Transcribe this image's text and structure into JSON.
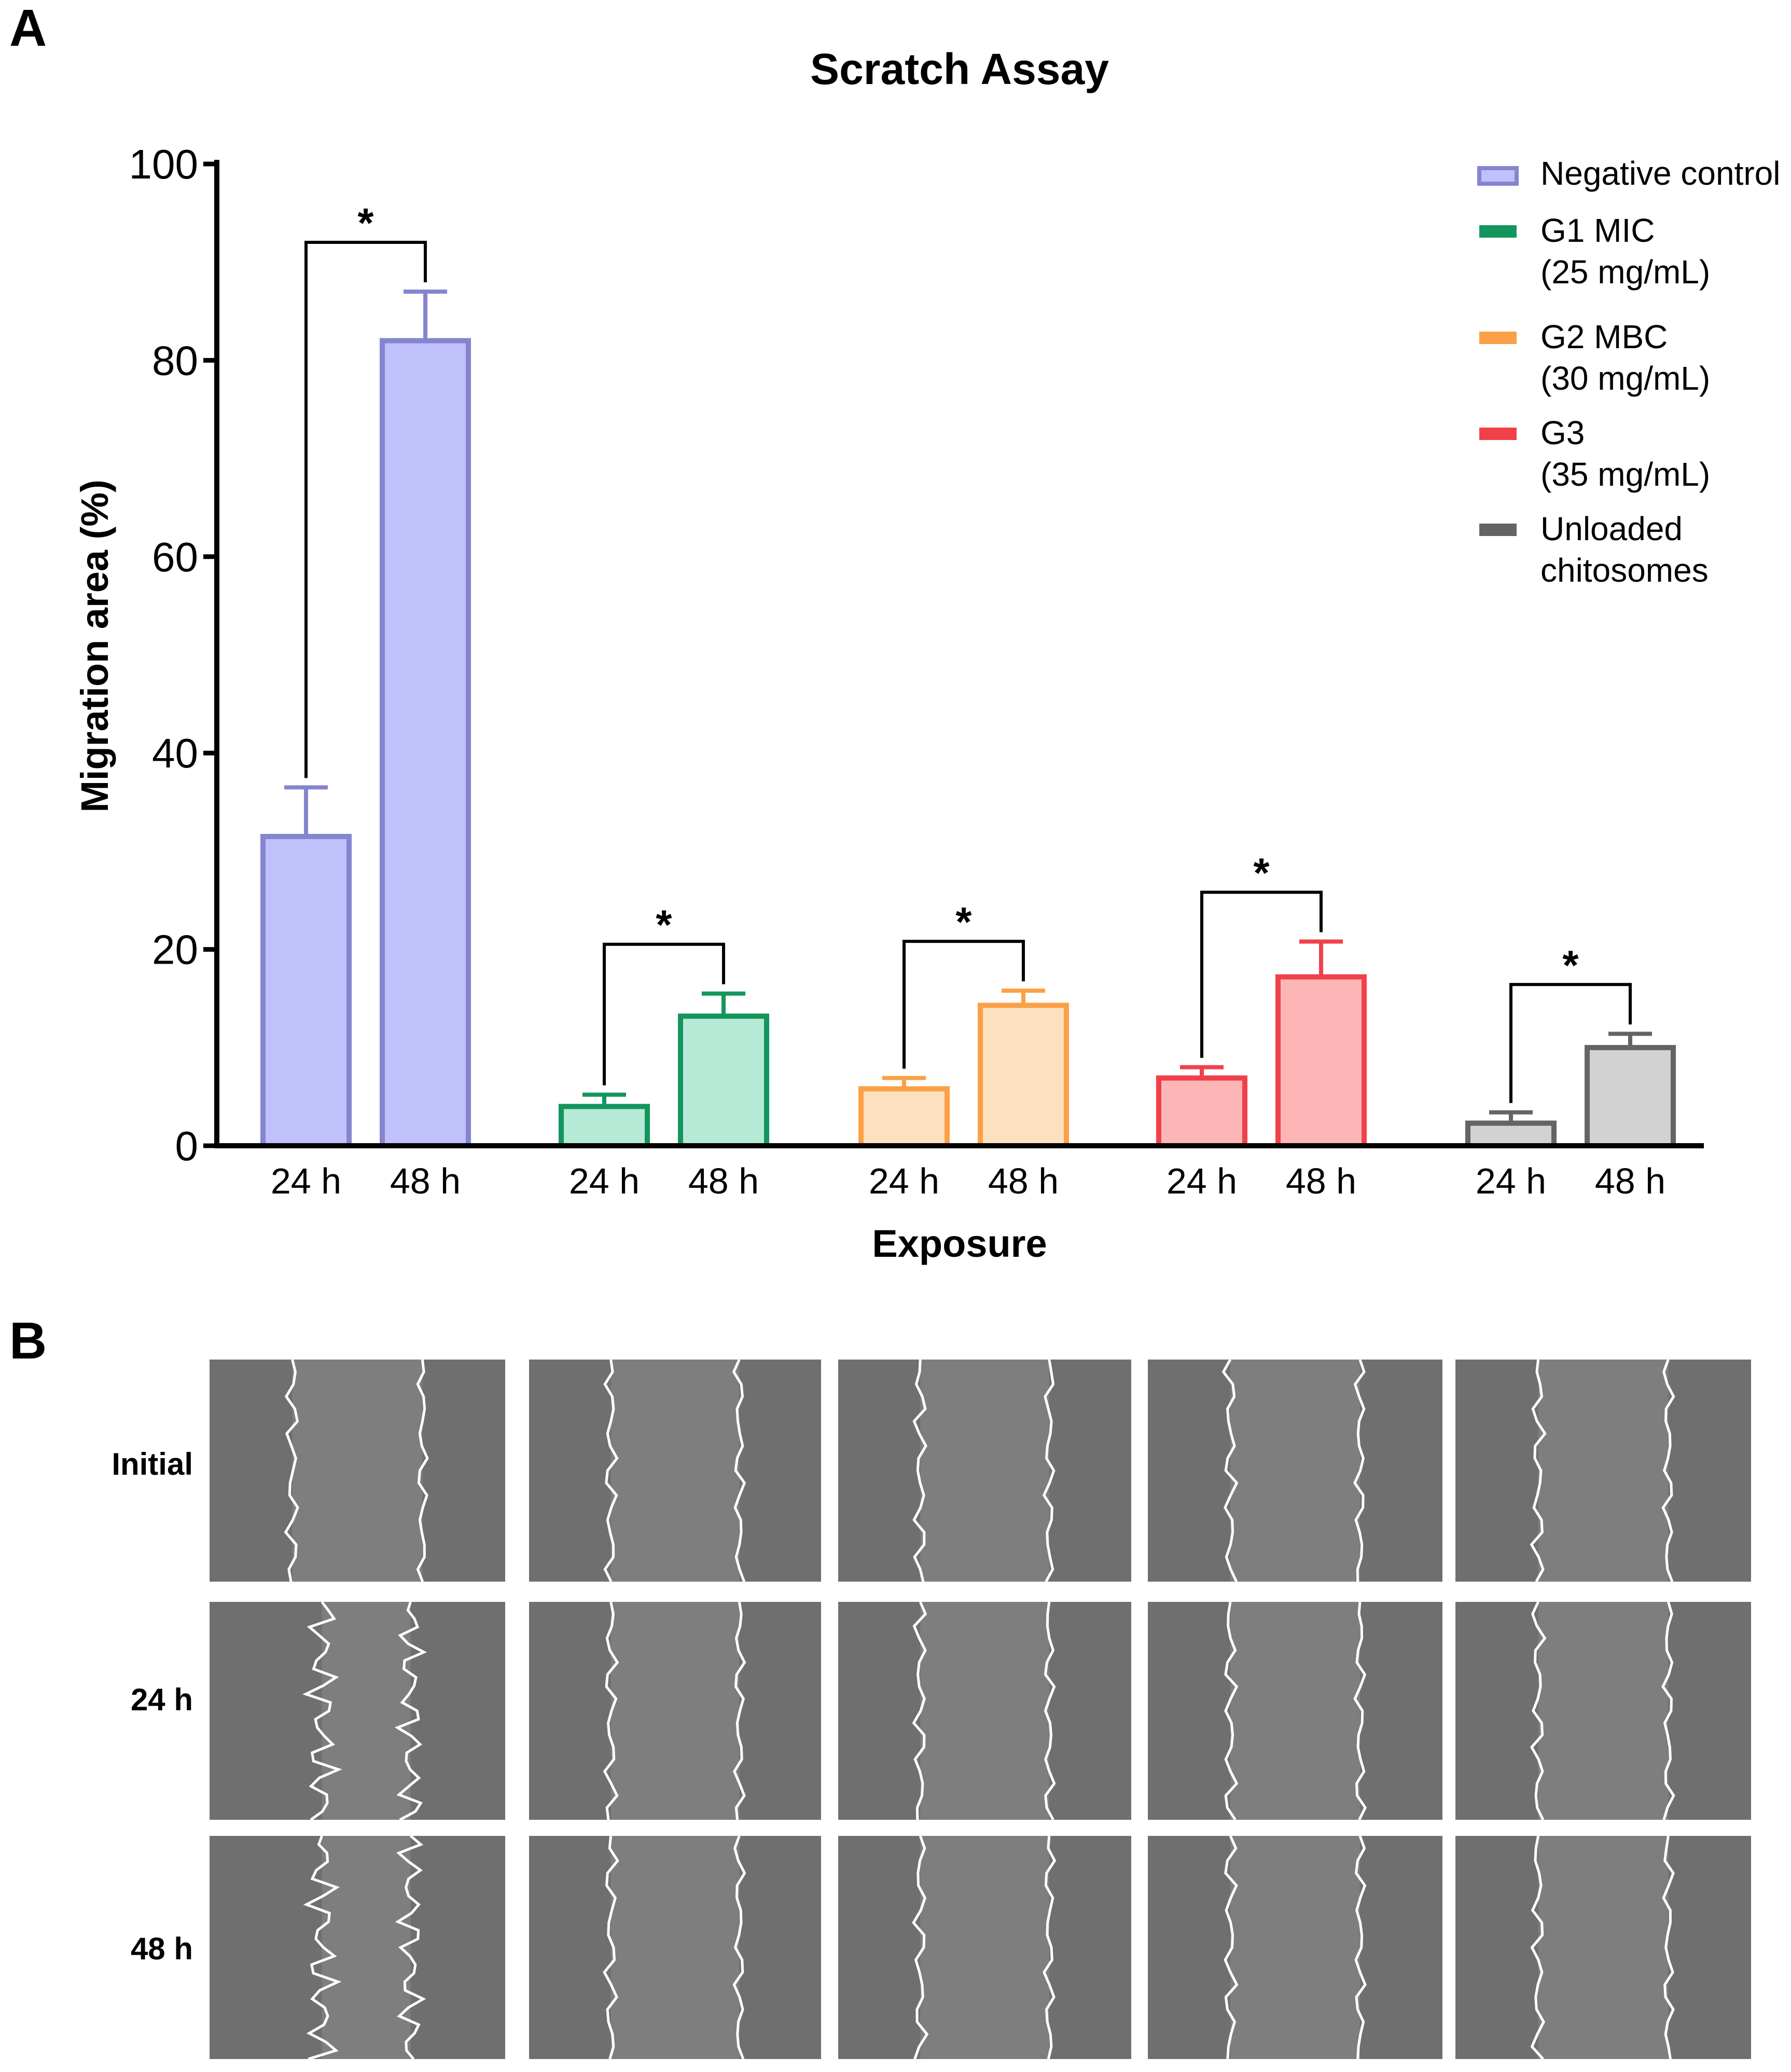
{
  "panel_a": {
    "letter": "A"
  },
  "panel_b": {
    "letter": "B",
    "row_labels": [
      "Initial",
      "24 h",
      "48 h"
    ],
    "columns": 5
  },
  "significance_marker": "*",
  "colors": {
    "axis": "#000000",
    "text": "#000000",
    "micro_bg": "#6f6f6f",
    "scratch_bg": "#7e7e7e",
    "scratch_line": "#ffffff"
  },
  "chart_data": {
    "type": "bar",
    "title": "Scratch Assay",
    "xlabel": "Exposure",
    "ylabel": "Migration area (%)",
    "ylim": [
      0,
      100
    ],
    "yticks": [
      0,
      20,
      40,
      60,
      80,
      100
    ],
    "grid": false,
    "legend_position": "top-right",
    "categories": [
      "24 h",
      "48 h"
    ],
    "series": [
      {
        "name": "Negative control",
        "legend": [
          "Negative control"
        ],
        "fill": "#c0c0fb",
        "stroke": "#8585cf",
        "values": [
          31.5,
          82.0
        ],
        "errors": [
          5.0,
          5.0
        ],
        "significant": true
      },
      {
        "name": "G1 MIC (25 mg/mL)",
        "legend": [
          "G1 MIC",
          "(25 mg/mL)"
        ],
        "fill": "#b6ead6",
        "stroke": "#13965d",
        "values": [
          4.0,
          13.2
        ],
        "errors": [
          1.2,
          2.3
        ],
        "significant": true
      },
      {
        "name": "G2 MBC (30 mg/mL)",
        "legend": [
          "G2 MBC",
          "(30 mg/mL)"
        ],
        "fill": "#fde0bf",
        "stroke": "#fba046",
        "values": [
          5.8,
          14.3
        ],
        "errors": [
          1.1,
          1.5
        ],
        "significant": true
      },
      {
        "name": "G3 (35 mg/mL)",
        "legend": [
          "G3",
          "(35 mg/mL)"
        ],
        "fill": "#fdb6b6",
        "stroke": "#f0414b",
        "values": [
          6.9,
          17.2
        ],
        "errors": [
          1.1,
          3.6
        ],
        "significant": true
      },
      {
        "name": "Unloaded chitosomes",
        "legend": [
          "Unloaded",
          "chitosomes"
        ],
        "fill": "#d2d2d2",
        "stroke": "#646464",
        "values": [
          2.3,
          10.0
        ],
        "errors": [
          1.1,
          1.4
        ],
        "significant": true
      }
    ]
  }
}
